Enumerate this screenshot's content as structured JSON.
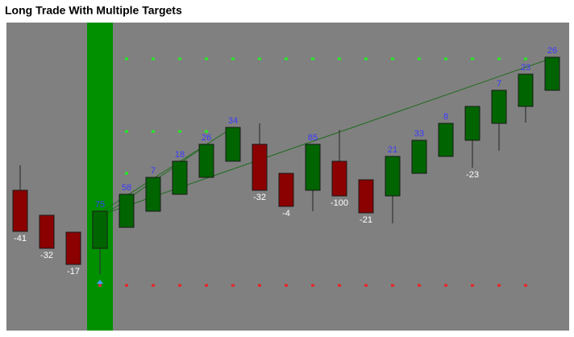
{
  "chart_data": {
    "type": "candlestick",
    "title": "Long Trade With Multiple Targets",
    "open": [
      174,
      143,
      122,
      102,
      128,
      148,
      169,
      190,
      210,
      231,
      195,
      174,
      210,
      187,
      167,
      195,
      216,
      236,
      257,
      278,
      298
    ],
    "high": [
      205,
      143,
      122,
      148,
      169,
      190,
      210,
      231,
      252,
      257,
      195,
      231,
      249,
      187,
      216,
      236,
      257,
      278,
      298,
      318,
      339
    ],
    "low": [
      123,
      102,
      82,
      70,
      128,
      148,
      169,
      190,
      210,
      174,
      154,
      148,
      167,
      146,
      133,
      195,
      216,
      202,
      223,
      258,
      298
    ],
    "close": [
      123,
      102,
      82,
      148,
      169,
      190,
      210,
      231,
      252,
      174,
      154,
      231,
      167,
      146,
      216,
      236,
      257,
      278,
      298,
      318,
      339
    ],
    "labels": [
      -41,
      -32,
      -17,
      75,
      58,
      7,
      18,
      26,
      34,
      -32,
      -4,
      85,
      -100,
      -21,
      21,
      33,
      8,
      -23,
      7,
      23,
      26
    ],
    "up_color": "#006400",
    "down_color": "#8b0000",
    "targets": [
      337,
      247,
      195
    ],
    "target_color": "#22ee22",
    "stop": 56,
    "stop_color": "#ee2222",
    "ylim": [
      0,
      382
    ]
  }
}
